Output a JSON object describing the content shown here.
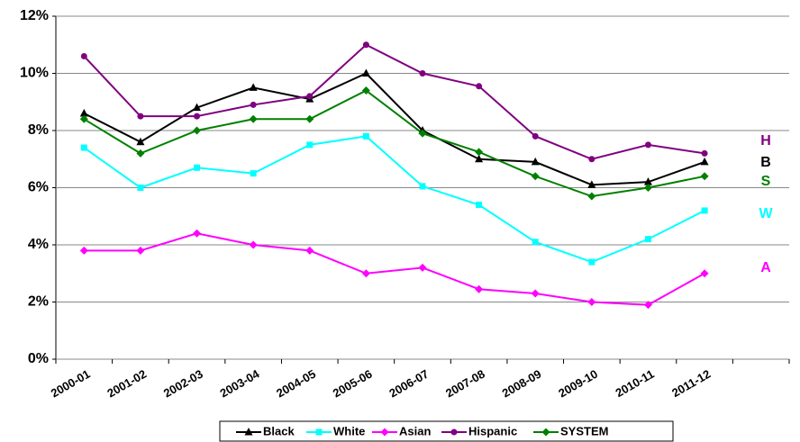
{
  "chart_data": {
    "type": "line",
    "categories": [
      "2000-01",
      "2001-02",
      "2002-03",
      "2003-04",
      "2004-05",
      "2005-06",
      "2006-07",
      "2007-08",
      "2008-09",
      "2009-10",
      "2010-11",
      "2011-12",
      null
    ],
    "series": [
      {
        "name": "Black",
        "color": "#000000",
        "marker": "triangle",
        "values": [
          8.6,
          7.6,
          8.8,
          9.5,
          9.1,
          10.0,
          8.0,
          7.0,
          6.9,
          6.1,
          6.2,
          6.9,
          null
        ]
      },
      {
        "name": "White",
        "color": "#00ffff",
        "marker": "square",
        "values": [
          7.4,
          6.0,
          6.7,
          6.5,
          7.5,
          7.8,
          6.05,
          5.4,
          4.1,
          3.4,
          4.2,
          5.2,
          null
        ]
      },
      {
        "name": "Asian",
        "color": "#ff00ff",
        "marker": "diamond",
        "values": [
          3.8,
          3.8,
          4.4,
          4.0,
          3.8,
          3.0,
          3.2,
          2.45,
          2.3,
          2.0,
          1.9,
          3.0,
          null
        ]
      },
      {
        "name": "Hispanic",
        "color": "#800080",
        "marker": "circle",
        "values": [
          10.6,
          8.5,
          8.5,
          8.9,
          9.2,
          11.0,
          10.0,
          9.55,
          7.8,
          7.0,
          7.5,
          7.2,
          null
        ]
      },
      {
        "name": "SYSTEM",
        "color": "#008000",
        "marker": "diamond",
        "values": [
          8.4,
          7.2,
          8.0,
          8.4,
          8.4,
          9.4,
          7.9,
          7.25,
          6.4,
          5.7,
          6.0,
          6.4,
          null
        ]
      }
    ],
    "annotations": [
      {
        "text": "H",
        "color": "#800080"
      },
      {
        "text": "B",
        "color": "#000000"
      },
      {
        "text": "S",
        "color": "#008000"
      },
      {
        "text": "W",
        "color": "#00ffff"
      },
      {
        "text": "A",
        "color": "#ff00ff"
      }
    ],
    "ylim": [
      0,
      12
    ],
    "yticks": [
      {
        "value": 0,
        "label": "0%"
      },
      {
        "value": 2,
        "label": "2%"
      },
      {
        "value": 4,
        "label": "4%"
      },
      {
        "value": 6,
        "label": "6%"
      },
      {
        "value": 8,
        "label": "8%"
      },
      {
        "value": 10,
        "label": "10%"
      },
      {
        "value": 12,
        "label": "12%"
      }
    ],
    "grid": true,
    "legend": "bottom"
  }
}
